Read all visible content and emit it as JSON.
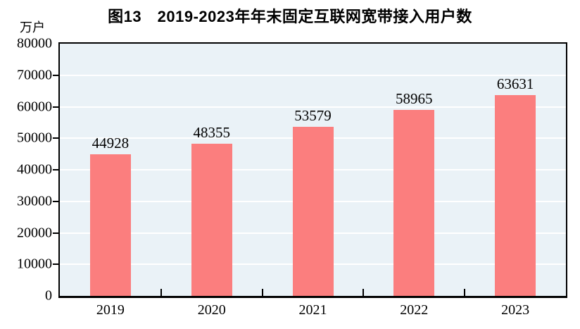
{
  "chart_data": {
    "type": "bar",
    "title": "图13　2019-2023年年末固定互联网宽带接入用户数",
    "categories": [
      "2019",
      "2020",
      "2021",
      "2022",
      "2023"
    ],
    "values": [
      44928,
      48355,
      53579,
      58965,
      63631
    ],
    "data_labels": [
      "44928",
      "48355",
      "53579",
      "58965",
      "63631"
    ],
    "xlabel": "",
    "ylabel": "万户",
    "ylim": [
      0,
      80000
    ],
    "ytick_step": 10000,
    "yticks": [
      0,
      10000,
      20000,
      30000,
      40000,
      50000,
      60000,
      70000,
      80000
    ],
    "grid": "horizontal",
    "legend": "none",
    "colors": {
      "bar_fill": "#FB7E7E",
      "plot_background": "#EAF2F7",
      "gridline": "#FFFFFF",
      "axis_frame": "#000000",
      "text": "#000000",
      "page_background": "#FFFFFF"
    }
  }
}
